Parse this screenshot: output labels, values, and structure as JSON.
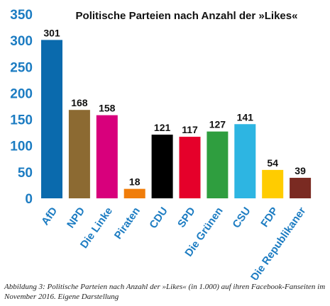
{
  "chart_data": {
    "type": "bar",
    "title": "Politische Parteien nach Anzahl der »Likes«",
    "categories": [
      "AfD",
      "NPD",
      "Die Linke",
      "Piraten",
      "CDU",
      "SPD",
      "Die Grünen",
      "CSU",
      "FDP",
      "Die Republikaner"
    ],
    "values": [
      301,
      168,
      158,
      18,
      121,
      117,
      127,
      141,
      54,
      39
    ],
    "bar_colors": [
      "#0a6aad",
      "#8c6a32",
      "#d8007c",
      "#f07d0a",
      "#000000",
      "#e5002a",
      "#2f9e3f",
      "#2db5e2",
      "#ffcc00",
      "#7a2a22"
    ],
    "ylim": [
      0,
      350
    ],
    "yticks": [
      0,
      50,
      100,
      150,
      200,
      250,
      300,
      350
    ],
    "xlabel": "",
    "ylabel": "",
    "grid": false,
    "legend": "none"
  },
  "caption": "Abbildung 3: Politische Parteien nach Anzahl der »Likes« (in 1.000) auf ihren Facebook-Fanseiten im November 2016. Eigene Darstellung"
}
